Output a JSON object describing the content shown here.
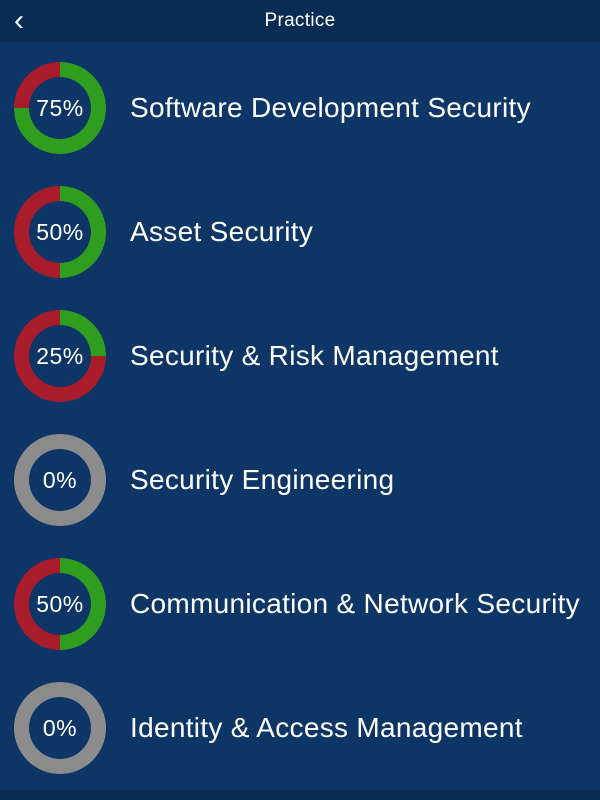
{
  "nav": {
    "title": "Practice",
    "back_icon": "‹"
  },
  "colors": {
    "background": "#0d3666",
    "nav_background": "#092c55",
    "green": "#2f9e1f",
    "red": "#a81c2c",
    "gray": "#8c8c8c",
    "text": "#ffffff"
  },
  "items": [
    {
      "percent": 75,
      "percent_label": "75%",
      "label": "Software Development Security"
    },
    {
      "percent": 50,
      "percent_label": "50%",
      "label": "Asset Security"
    },
    {
      "percent": 25,
      "percent_label": "25%",
      "label": "Security & Risk Management"
    },
    {
      "percent": 0,
      "percent_label": "0%",
      "label": "Security Engineering"
    },
    {
      "percent": 50,
      "percent_label": "50%",
      "label": "Communication & Network Security"
    },
    {
      "percent": 0,
      "percent_label": "0%",
      "label": "Identity & Access Management"
    }
  ]
}
